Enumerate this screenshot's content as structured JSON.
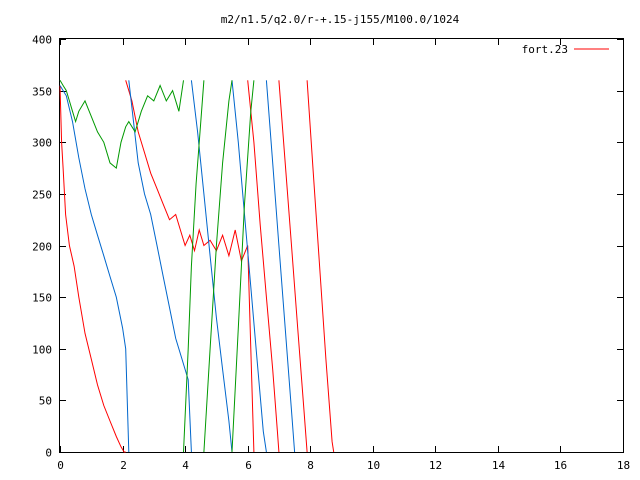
{
  "chart_data": {
    "type": "line",
    "title": "m2/n1.5/q2.0/r-+.15-j155/M100.0/1024",
    "xlabel": "",
    "ylabel": "",
    "xlim": [
      0,
      18
    ],
    "ylim": [
      0,
      400
    ],
    "x_ticks": [
      "0",
      "2",
      "4",
      "6",
      "8",
      "10",
      "12",
      "14",
      "16",
      "18"
    ],
    "y_ticks": [
      "0",
      "50",
      "100",
      "150",
      "200",
      "250",
      "300",
      "350",
      "400"
    ],
    "grid": false,
    "legend_position": "top-right",
    "legend": [
      {
        "label": "fort.23",
        "color": "#ff0000"
      }
    ],
    "series": [
      {
        "color": "#ff0000",
        "wrap_period": 360,
        "segments": [
          [
            [
              0.0,
              355
            ],
            [
              0.05,
              300
            ],
            [
              0.1,
              275
            ],
            [
              0.18,
              230
            ],
            [
              0.3,
              200
            ],
            [
              0.45,
              180
            ],
            [
              0.6,
              150
            ],
            [
              0.8,
              115
            ],
            [
              1.0,
              90
            ],
            [
              1.2,
              65
            ],
            [
              1.4,
              45
            ],
            [
              1.6,
              30
            ],
            [
              1.8,
              15
            ],
            [
              1.95,
              5
            ],
            [
              2.05,
              0
            ],
            [
              2.1,
              0
            ]
          ],
          [
            [
              2.1,
              360
            ],
            [
              2.3,
              340
            ],
            [
              2.5,
              310
            ],
            [
              2.7,
              290
            ],
            [
              2.9,
              270
            ],
            [
              3.1,
              255
            ],
            [
              3.3,
              240
            ],
            [
              3.5,
              225
            ],
            [
              3.7,
              230
            ],
            [
              3.85,
              215
            ],
            [
              4.0,
              200
            ],
            [
              4.15,
              210
            ],
            [
              4.3,
              195
            ],
            [
              4.45,
              215
            ],
            [
              4.6,
              200
            ],
            [
              4.8,
              205
            ],
            [
              5.0,
              195
            ],
            [
              5.2,
              210
            ],
            [
              5.4,
              190
            ],
            [
              5.6,
              215
            ],
            [
              5.8,
              185
            ],
            [
              6.0,
              200
            ],
            [
              6.2,
              0
            ]
          ],
          [
            [
              6.0,
              360
            ],
            [
              6.2,
              300
            ],
            [
              6.4,
              220
            ],
            [
              6.6,
              150
            ],
            [
              6.8,
              80
            ],
            [
              6.95,
              20
            ],
            [
              7.0,
              0
            ]
          ],
          [
            [
              7.0,
              360
            ],
            [
              7.2,
              280
            ],
            [
              7.4,
              200
            ],
            [
              7.6,
              120
            ],
            [
              7.8,
              40
            ],
            [
              7.9,
              0
            ]
          ],
          [
            [
              7.9,
              360
            ],
            [
              8.1,
              270
            ],
            [
              8.3,
              180
            ],
            [
              8.5,
              90
            ],
            [
              8.7,
              10
            ],
            [
              8.75,
              0
            ]
          ]
        ]
      },
      {
        "color": "#0066cc",
        "wrap_period": 360,
        "segments": [
          [
            [
              0.0,
              355
            ],
            [
              0.2,
              345
            ],
            [
              0.4,
              320
            ],
            [
              0.6,
              285
            ],
            [
              0.8,
              255
            ],
            [
              1.0,
              230
            ],
            [
              1.2,
              210
            ],
            [
              1.4,
              190
            ],
            [
              1.6,
              170
            ],
            [
              1.8,
              150
            ],
            [
              2.0,
              120
            ],
            [
              2.1,
              100
            ],
            [
              2.2,
              0
            ]
          ],
          [
            [
              2.2,
              360
            ],
            [
              2.35,
              320
            ],
            [
              2.5,
              280
            ],
            [
              2.7,
              250
            ],
            [
              2.9,
              230
            ],
            [
              3.1,
              200
            ],
            [
              3.3,
              170
            ],
            [
              3.5,
              140
            ],
            [
              3.7,
              110
            ],
            [
              3.9,
              90
            ],
            [
              4.1,
              70
            ],
            [
              4.2,
              0
            ]
          ],
          [
            [
              4.2,
              360
            ],
            [
              4.4,
              310
            ],
            [
              4.6,
              250
            ],
            [
              4.8,
              190
            ],
            [
              5.0,
              130
            ],
            [
              5.2,
              80
            ],
            [
              5.4,
              30
            ],
            [
              5.5,
              0
            ]
          ],
          [
            [
              5.5,
              360
            ],
            [
              5.7,
              300
            ],
            [
              5.9,
              230
            ],
            [
              6.1,
              160
            ],
            [
              6.3,
              90
            ],
            [
              6.5,
              20
            ],
            [
              6.6,
              0
            ]
          ],
          [
            [
              6.6,
              360
            ],
            [
              6.8,
              280
            ],
            [
              7.0,
              200
            ],
            [
              7.2,
              120
            ],
            [
              7.4,
              40
            ],
            [
              7.5,
              0
            ]
          ]
        ]
      },
      {
        "color": "#009900",
        "wrap_period": 360,
        "segments": [
          [
            [
              0.0,
              360
            ],
            [
              0.1,
              355
            ],
            [
              0.2,
              350
            ],
            [
              0.3,
              340
            ],
            [
              0.4,
              330
            ],
            [
              0.5,
              320
            ],
            [
              0.6,
              330
            ],
            [
              0.8,
              340
            ],
            [
              1.0,
              325
            ],
            [
              1.2,
              310
            ],
            [
              1.4,
              300
            ],
            [
              1.6,
              280
            ],
            [
              1.8,
              275
            ],
            [
              1.95,
              300
            ],
            [
              2.1,
              315
            ],
            [
              2.2,
              320
            ],
            [
              2.4,
              310
            ],
            [
              2.6,
              330
            ],
            [
              2.8,
              345
            ],
            [
              3.0,
              340
            ],
            [
              3.2,
              355
            ],
            [
              3.4,
              340
            ],
            [
              3.6,
              350
            ],
            [
              3.8,
              330
            ],
            [
              3.95,
              360
            ]
          ],
          [
            [
              3.95,
              0
            ],
            [
              4.1,
              100
            ],
            [
              4.2,
              180
            ],
            [
              4.35,
              260
            ],
            [
              4.5,
              320
            ],
            [
              4.6,
              360
            ]
          ],
          [
            [
              4.6,
              0
            ],
            [
              4.8,
              100
            ],
            [
              5.0,
              200
            ],
            [
              5.2,
              280
            ],
            [
              5.4,
              340
            ],
            [
              5.5,
              360
            ]
          ],
          [
            [
              5.5,
              0
            ],
            [
              5.7,
              120
            ],
            [
              5.9,
              240
            ],
            [
              6.1,
              330
            ],
            [
              6.2,
              360
            ]
          ]
        ]
      }
    ]
  }
}
